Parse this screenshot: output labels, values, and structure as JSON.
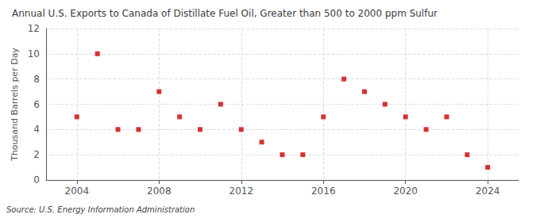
{
  "chart_data": {
    "type": "scatter",
    "title": "Annual U.S. Exports to Canada of Distillate Fuel Oil, Greater than 500 to 2000 ppm Sulfur",
    "ylabel": "Thousand Barrels per Day",
    "annotation": "Source: U.S. Energy Information Administration",
    "x": [
      2004,
      2005,
      2006,
      2007,
      2008,
      2009,
      2010,
      2011,
      2012,
      2013,
      2014,
      2015,
      2016,
      2017,
      2018,
      2019,
      2020,
      2021,
      2022,
      2023,
      2024
    ],
    "values": [
      5,
      10,
      4,
      4,
      7,
      5,
      4,
      6,
      4,
      3,
      2,
      2,
      5,
      8,
      7,
      6,
      5,
      4,
      5,
      2,
      1
    ],
    "color": "#cc0000",
    "marker": "square",
    "xlim": [
      2002.5,
      2025.5
    ],
    "xticks": [
      2004,
      2008,
      2012,
      2016,
      2020,
      2024
    ],
    "ylim": [
      0,
      12
    ],
    "yticks": [
      0,
      2,
      4,
      6,
      8,
      10,
      12
    ],
    "grid": true
  }
}
